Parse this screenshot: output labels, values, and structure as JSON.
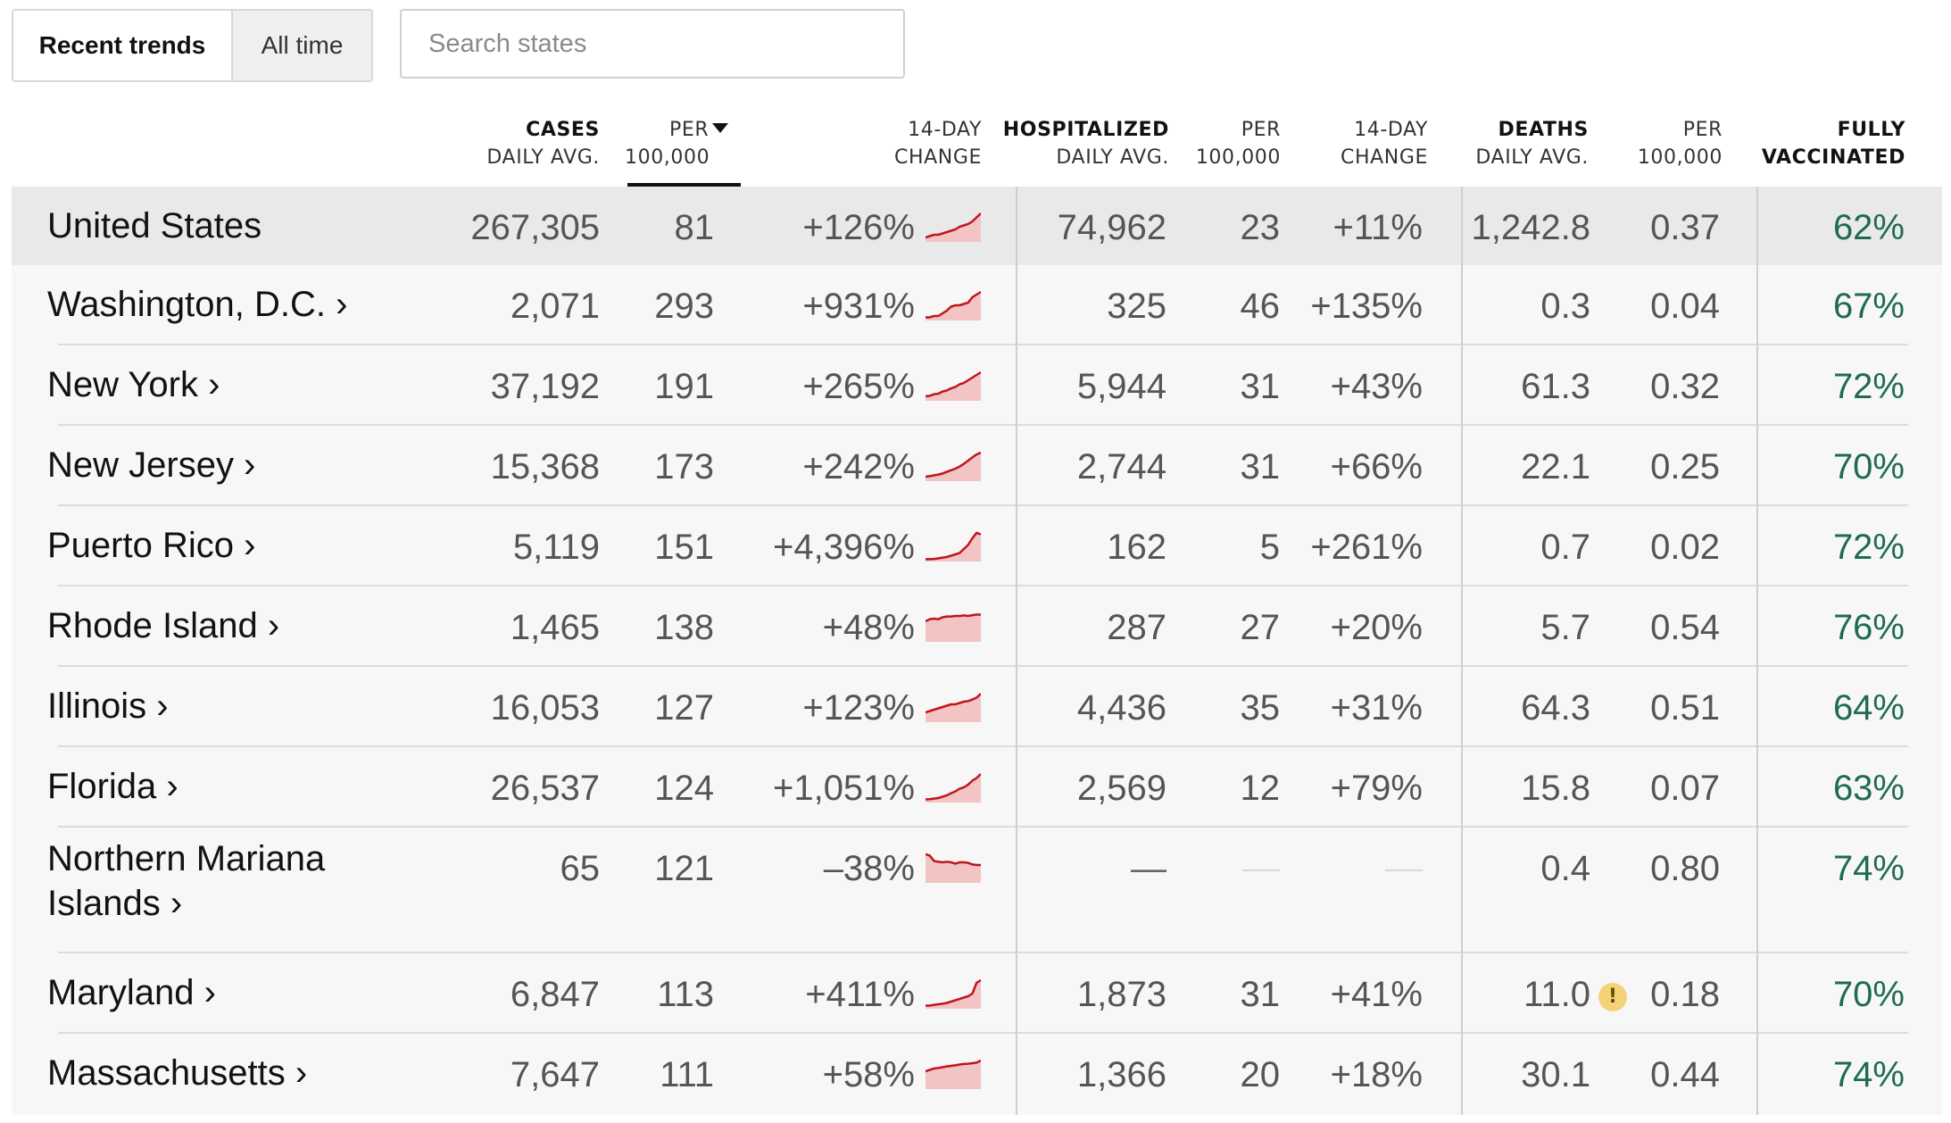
{
  "toolbar": {
    "tab_recent": "Recent trends",
    "tab_all": "All time",
    "search_placeholder": "Search states"
  },
  "headers": {
    "cases_1": "CASES",
    "cases_2": "DAILY AVG.",
    "per_1": "PER",
    "per_2": "100,000",
    "chg_1": "14-DAY",
    "chg_2": "CHANGE",
    "hosp_1": "HOSPITALIZED",
    "hosp_2": "DAILY AVG.",
    "hper_1": "PER",
    "hper_2": "100,000",
    "hchg_1": "14-DAY",
    "hchg_2": "CHANGE",
    "deaths_1": "DEATHS",
    "deaths_2": "DAILY AVG.",
    "dper_1": "PER",
    "dper_2": "100,000",
    "vac_1": "FULLY",
    "vac_2": "VACCINATED"
  },
  "colors": {
    "sparkline_stroke": "#c0161c",
    "sparkline_fill": "#f3c4c4",
    "vaccinated": "#1f6b52",
    "warning": "#f4d27a"
  },
  "rows": [
    {
      "name": "United States",
      "cases": "267,305",
      "per": "81",
      "change": "+126%",
      "spark": [
        0.1,
        0.15,
        0.2,
        0.2,
        0.25,
        0.3,
        0.35,
        0.4,
        0.5,
        0.55,
        0.6,
        0.7,
        0.85,
        1.0
      ],
      "hosp": "74,962",
      "hper": "23",
      "hchg": "+11%",
      "deaths": "1,242.8",
      "dper": "0.37",
      "vac": "62%"
    },
    {
      "name": "Washington, D.C. ›",
      "cases": "2,071",
      "per": "293",
      "change": "+931%",
      "spark": [
        0.05,
        0.05,
        0.1,
        0.1,
        0.2,
        0.3,
        0.45,
        0.5,
        0.5,
        0.55,
        0.6,
        0.8,
        0.9,
        1.0
      ],
      "hosp": "325",
      "hper": "46",
      "hchg": "+135%",
      "deaths": "0.3",
      "dper": "0.04",
      "vac": "67%"
    },
    {
      "name": "New York ›",
      "cases": "37,192",
      "per": "191",
      "change": "+265%",
      "spark": [
        0.1,
        0.12,
        0.18,
        0.2,
        0.28,
        0.32,
        0.4,
        0.45,
        0.55,
        0.6,
        0.7,
        0.8,
        0.9,
        1.0
      ],
      "hosp": "5,944",
      "hper": "31",
      "hchg": "+43%",
      "deaths": "61.3",
      "dper": "0.32",
      "vac": "72%"
    },
    {
      "name": "New Jersey ›",
      "cases": "15,368",
      "per": "173",
      "change": "+242%",
      "spark": [
        0.1,
        0.12,
        0.15,
        0.18,
        0.22,
        0.28,
        0.34,
        0.4,
        0.48,
        0.58,
        0.7,
        0.82,
        0.93,
        1.0
      ],
      "hosp": "2,744",
      "hper": "31",
      "hchg": "+66%",
      "deaths": "22.1",
      "dper": "0.25",
      "vac": "70%"
    },
    {
      "name": "Puerto Rico ›",
      "cases": "5,119",
      "per": "151",
      "change": "+4,396%",
      "spark": [
        0.02,
        0.02,
        0.03,
        0.05,
        0.08,
        0.1,
        0.15,
        0.2,
        0.25,
        0.4,
        0.55,
        0.8,
        1.0,
        0.95
      ],
      "hosp": "162",
      "hper": "5",
      "hchg": "+261%",
      "deaths": "0.7",
      "dper": "0.02",
      "vac": "72%"
    },
    {
      "name": "Rhode Island ›",
      "cases": "1,465",
      "per": "138",
      "change": "+48%",
      "spark": [
        0.7,
        0.78,
        0.8,
        0.78,
        0.85,
        0.88,
        0.88,
        0.9,
        0.9,
        0.92,
        0.9,
        0.93,
        0.95,
        0.95
      ],
      "hosp": "287",
      "hper": "27",
      "hchg": "+20%",
      "deaths": "5.7",
      "dper": "0.54",
      "vac": "76%"
    },
    {
      "name": "Illinois ›",
      "cases": "16,053",
      "per": "127",
      "change": "+123%",
      "spark": [
        0.3,
        0.35,
        0.4,
        0.45,
        0.5,
        0.55,
        0.6,
        0.6,
        0.65,
        0.7,
        0.72,
        0.78,
        0.85,
        1.0
      ],
      "hosp": "4,436",
      "hper": "35",
      "hchg": "+31%",
      "deaths": "64.3",
      "dper": "0.51",
      "vac": "64%"
    },
    {
      "name": "Florida ›",
      "cases": "26,537",
      "per": "124",
      "change": "+1,051%",
      "spark": [
        0.05,
        0.06,
        0.08,
        0.1,
        0.15,
        0.2,
        0.28,
        0.35,
        0.45,
        0.5,
        0.6,
        0.75,
        0.85,
        1.0
      ],
      "hosp": "2,569",
      "hper": "12",
      "hchg": "+79%",
      "deaths": "15.8",
      "dper": "0.07",
      "vac": "63%"
    },
    {
      "name": "Northern Mariana Islands ›",
      "name_1": "Northern Mariana",
      "name_2": "Islands ›",
      "cases": "65",
      "per": "121",
      "change": "–38%",
      "spark": [
        1.0,
        0.95,
        0.75,
        0.72,
        0.7,
        0.72,
        0.7,
        0.65,
        0.7,
        0.7,
        0.68,
        0.62,
        0.6,
        0.6
      ],
      "hosp": "—",
      "hper": "",
      "hchg": "",
      "deaths": "0.4",
      "dper": "0.80",
      "vac": "74%"
    },
    {
      "name": "Maryland ›",
      "cases": "6,847",
      "per": "113",
      "change": "+411%",
      "spark": [
        0.05,
        0.05,
        0.08,
        0.1,
        0.12,
        0.15,
        0.2,
        0.25,
        0.3,
        0.35,
        0.4,
        0.5,
        0.9,
        1.0
      ],
      "hosp": "1,873",
      "hper": "31",
      "hchg": "+41%",
      "deaths": "11.0",
      "warning": "!",
      "dper": "0.18",
      "vac": "70%"
    },
    {
      "name": "Massachusetts ›",
      "cases": "7,647",
      "per": "111",
      "change": "+58%",
      "spark": [
        0.6,
        0.65,
        0.7,
        0.72,
        0.75,
        0.78,
        0.8,
        0.82,
        0.85,
        0.87,
        0.88,
        0.9,
        0.92,
        1.0
      ],
      "hosp": "1,366",
      "hper": "20",
      "hchg": "+18%",
      "deaths": "30.1",
      "dper": "0.44",
      "vac": "74%"
    }
  ]
}
